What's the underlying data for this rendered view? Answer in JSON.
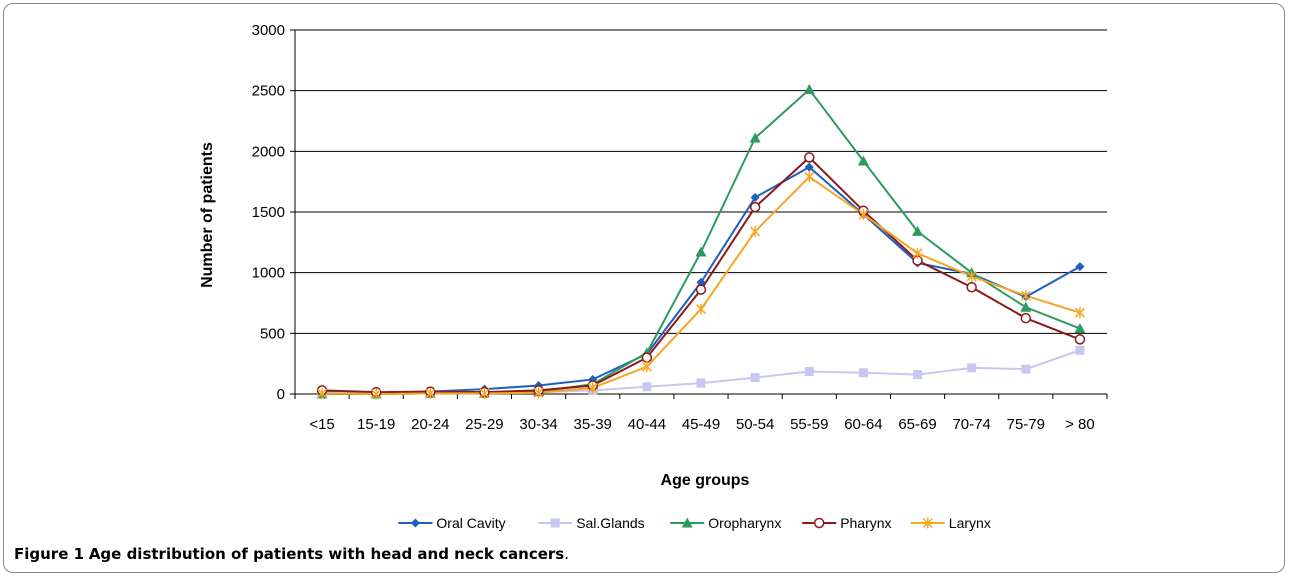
{
  "caption": {
    "label": "Figure 1",
    "text": "Age distribution of patients with head and neck cancers",
    "period": "."
  },
  "chart_data": {
    "type": "line",
    "title": "",
    "xlabel": "Age groups",
    "ylabel": "Number of patients",
    "ylim": [
      0,
      3000
    ],
    "yticks": [
      0,
      500,
      1000,
      1500,
      2000,
      2500,
      3000
    ],
    "grid": true,
    "legend_position": "bottom",
    "categories": [
      "<15",
      "15-19",
      "20-24",
      "25-29",
      "30-34",
      "35-39",
      "40-44",
      "45-49",
      "50-54",
      "55-59",
      "60-64",
      "65-69",
      "70-74",
      "75-79",
      "> 80"
    ],
    "series": [
      {
        "name": "Oral Cavity",
        "color": "#1f5fbf",
        "marker": "diamond",
        "values": [
          20,
          10,
          20,
          40,
          70,
          120,
          330,
          920,
          1620,
          1870,
          1480,
          1080,
          990,
          800,
          1050
        ]
      },
      {
        "name": "Sal.Glands",
        "color": "#c7c7f0",
        "marker": "square",
        "values": [
          10,
          5,
          10,
          10,
          15,
          30,
          60,
          90,
          135,
          185,
          175,
          160,
          215,
          205,
          360
        ]
      },
      {
        "name": "Oropharynx",
        "color": "#2e9a5e",
        "marker": "triangle",
        "values": [
          0,
          0,
          5,
          5,
          20,
          80,
          340,
          1170,
          2110,
          2510,
          1920,
          1340,
          1000,
          715,
          540
        ]
      },
      {
        "name": "Pharynx",
        "color": "#8b1a1a",
        "marker": "circle",
        "values": [
          30,
          15,
          20,
          15,
          30,
          70,
          300,
          860,
          1540,
          1950,
          1510,
          1100,
          880,
          625,
          450
        ]
      },
      {
        "name": "Larynx",
        "color": "#f5a623",
        "marker": "star",
        "values": [
          5,
          0,
          5,
          5,
          10,
          50,
          225,
          700,
          1340,
          1790,
          1480,
          1160,
          970,
          810,
          670
        ]
      }
    ]
  }
}
